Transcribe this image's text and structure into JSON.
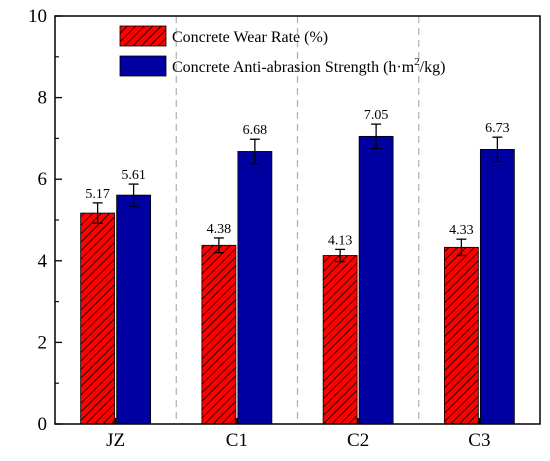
{
  "chart_data": {
    "type": "bar",
    "categories": [
      "JZ",
      "C1",
      "C2",
      "C3"
    ],
    "series": [
      {
        "name": "Concrete Wear Rate (%)",
        "values": [
          5.17,
          4.38,
          4.13,
          4.33
        ],
        "errors": [
          0.25,
          0.18,
          0.15,
          0.2
        ],
        "labels": [
          "5.17",
          "4.38",
          "4.13",
          "4.33"
        ],
        "color": "#ff0000",
        "pattern": "diagonal-hatch"
      },
      {
        "name": "Concrete Anti-abrasion Strength (h·m²/kg)",
        "values": [
          5.61,
          6.68,
          7.05,
          6.73
        ],
        "errors": [
          0.27,
          0.3,
          0.3,
          0.3
        ],
        "labels": [
          "5.61",
          "6.68",
          "7.05",
          "6.73"
        ],
        "color": "#0000a0"
      }
    ],
    "ylim": [
      0,
      10
    ],
    "yticks": [
      0,
      2,
      4,
      6,
      8,
      10
    ],
    "ytick_labels": [
      "0",
      "2",
      "4",
      "6",
      "8",
      "10"
    ],
    "xlabel": "",
    "ylabel": "",
    "title": "",
    "legend_position": "top-right",
    "category_separators": "dashed-gray"
  },
  "legend": {
    "wear_rate": "Concrete  Wear Rate  (%)",
    "strength_prefix": "Concrete Anti-abrasion Strength (h·m",
    "strength_sup": "2",
    "strength_suffix": "/kg)"
  }
}
